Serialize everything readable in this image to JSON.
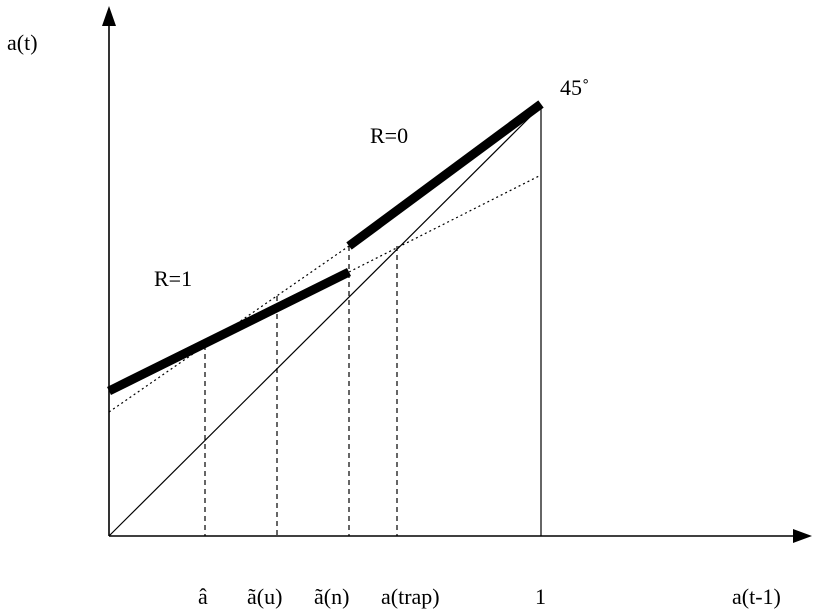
{
  "axes": {
    "y_label": "a(t)",
    "x_label": "a(t-1)"
  },
  "annotations": {
    "angle": "45˚",
    "regime_r0": "R=0",
    "regime_r1": "R=1"
  },
  "x_ticks": {
    "a_hat": "â",
    "a_tilde_u": "ã(u)",
    "a_tilde_n": "ã(n)",
    "a_trap": "a(trap)",
    "one": "1"
  }
}
